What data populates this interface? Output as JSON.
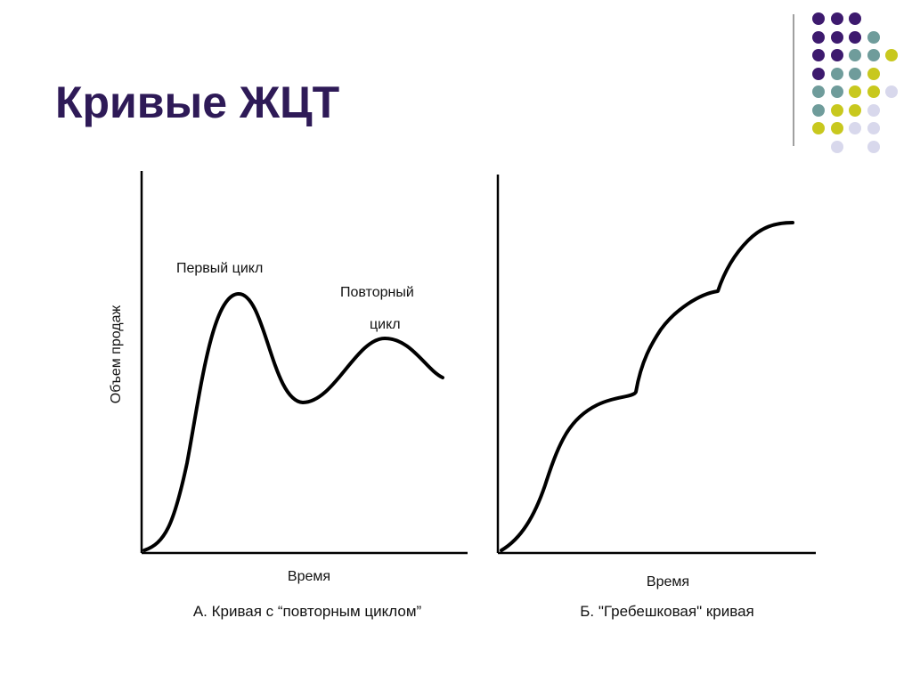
{
  "slide": {
    "title": "Кривые ЖЦТ"
  },
  "decor": {
    "dot_colors": {
      "purple": "#3d1a6e",
      "teal": "#6f9c9b",
      "olive": "#c8c81e",
      "lavender": "#d8d8ec"
    },
    "dot_grid": [
      [
        "purple",
        "purple",
        "purple",
        "",
        ""
      ],
      [
        "purple",
        "purple",
        "purple",
        "teal",
        ""
      ],
      [
        "purple",
        "purple",
        "teal",
        "teal",
        "olive"
      ],
      [
        "purple",
        "teal",
        "teal",
        "olive",
        ""
      ],
      [
        "teal",
        "teal",
        "olive",
        "olive",
        "lavender"
      ],
      [
        "teal",
        "olive",
        "olive",
        "lavender",
        ""
      ],
      [
        "olive",
        "olive",
        "lavender",
        "lavender",
        ""
      ],
      [
        "",
        "lavender",
        "",
        "lavender",
        ""
      ]
    ]
  },
  "charts": {
    "left": {
      "ylabel": "Объем продаж",
      "xlabel": "Время",
      "caption": "А. Кривая с “повторным циклом”",
      "annotation_first": "Первый цикл",
      "annotation_repeat_line1": "Повторный",
      "annotation_repeat_line2": "цикл"
    },
    "right": {
      "xlabel": "Время",
      "caption": "Б. \"Гребешковая\" кривая"
    }
  }
}
